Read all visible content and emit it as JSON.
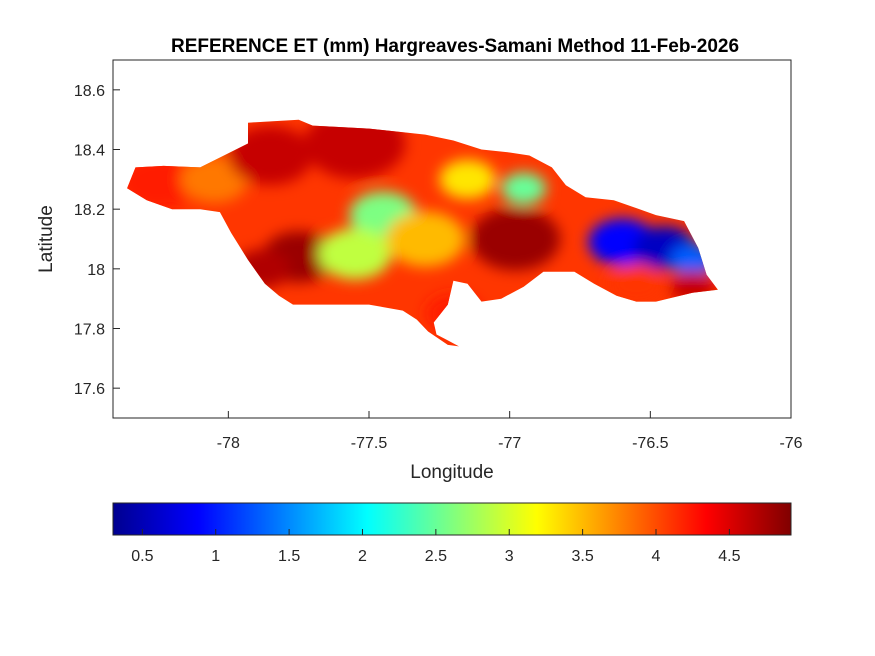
{
  "chart_data": {
    "type": "heatmap",
    "title": "REFERENCE ET (mm) Hargreaves-Samani Method  11-Feb-2026",
    "xlabel": "Longitude",
    "ylabel": "Latitude",
    "xlim": [
      -78.41,
      -76.0
    ],
    "ylim": [
      17.5,
      18.7
    ],
    "xticks": [
      -78,
      -77.5,
      -77,
      -76.5,
      -76
    ],
    "xtick_labels": [
      "-78",
      "-77.5",
      "-77",
      "-76.5",
      "-76"
    ],
    "yticks": [
      17.6,
      17.8,
      18.0,
      18.2,
      18.4,
      18.6
    ],
    "ytick_labels": [
      "17.6",
      "17.8",
      "18",
      "18.2",
      "18.4",
      "18.6"
    ],
    "colormap": "jet",
    "clim": [
      0.3,
      4.92
    ],
    "colorbar": {
      "location": "bottom",
      "ticks": [
        0.5,
        1,
        1.5,
        2,
        2.5,
        3,
        3.5,
        4,
        4.5
      ],
      "tick_labels": [
        "0.5",
        "1",
        "1.5",
        "2",
        "2.5",
        "3",
        "3.5",
        "4",
        "4.5"
      ]
    },
    "region_outline": [
      [
        -78.36,
        18.27
      ],
      [
        -78.33,
        18.34
      ],
      [
        -78.23,
        18.345
      ],
      [
        -78.1,
        18.34
      ],
      [
        -77.93,
        18.42
      ],
      [
        -77.93,
        18.49
      ],
      [
        -77.75,
        18.5
      ],
      [
        -77.7,
        18.48
      ],
      [
        -77.5,
        18.47
      ],
      [
        -77.3,
        18.45
      ],
      [
        -77.2,
        18.43
      ],
      [
        -77.1,
        18.4
      ],
      [
        -77.0,
        18.39
      ],
      [
        -76.93,
        18.38
      ],
      [
        -76.85,
        18.34
      ],
      [
        -76.8,
        18.28
      ],
      [
        -76.73,
        18.24
      ],
      [
        -76.63,
        18.23
      ],
      [
        -76.48,
        18.18
      ],
      [
        -76.38,
        18.16
      ],
      [
        -76.33,
        18.07
      ],
      [
        -76.3,
        17.98
      ],
      [
        -76.26,
        17.93
      ],
      [
        -76.35,
        17.92
      ],
      [
        -76.48,
        17.89
      ],
      [
        -76.55,
        17.89
      ],
      [
        -76.62,
        17.91
      ],
      [
        -76.7,
        17.95
      ],
      [
        -76.77,
        17.99
      ],
      [
        -76.88,
        17.99
      ],
      [
        -76.95,
        17.94
      ],
      [
        -77.03,
        17.9
      ],
      [
        -77.1,
        17.89
      ],
      [
        -77.15,
        17.95
      ],
      [
        -77.2,
        17.96
      ],
      [
        -77.22,
        17.88
      ],
      [
        -77.27,
        17.82
      ],
      [
        -77.26,
        17.78
      ],
      [
        -77.22,
        17.76
      ],
      [
        -77.18,
        17.74
      ],
      [
        -77.22,
        17.745
      ],
      [
        -77.29,
        17.79
      ],
      [
        -77.33,
        17.83
      ],
      [
        -77.38,
        17.86
      ],
      [
        -77.5,
        17.88
      ],
      [
        -77.7,
        17.88
      ],
      [
        -77.77,
        17.88
      ],
      [
        -77.82,
        17.91
      ],
      [
        -77.87,
        17.95
      ],
      [
        -77.93,
        18.03
      ],
      [
        -77.99,
        18.12
      ],
      [
        -78.03,
        18.19
      ],
      [
        -78.1,
        18.2
      ],
      [
        -78.2,
        18.2
      ],
      [
        -78.29,
        18.23
      ],
      [
        -78.36,
        18.27
      ]
    ],
    "value_regions": [
      {
        "lon": -78.25,
        "lat": 18.29,
        "value": 4.2,
        "radius_deg": 0.14
      },
      {
        "lon": -78.05,
        "lat": 18.3,
        "value": 3.8,
        "radius_deg": 0.12
      },
      {
        "lon": -77.85,
        "lat": 18.38,
        "value": 4.6,
        "radius_deg": 0.15
      },
      {
        "lon": -77.75,
        "lat": 18.04,
        "value": 4.8,
        "radius_deg": 0.13
      },
      {
        "lon": -77.88,
        "lat": 18.0,
        "value": 4.7,
        "radius_deg": 0.1
      },
      {
        "lon": -77.55,
        "lat": 18.42,
        "value": 4.6,
        "radius_deg": 0.18
      },
      {
        "lon": -77.45,
        "lat": 18.18,
        "value": 2.6,
        "radius_deg": 0.12
      },
      {
        "lon": -77.55,
        "lat": 18.05,
        "value": 2.9,
        "radius_deg": 0.13
      },
      {
        "lon": -77.3,
        "lat": 18.1,
        "value": 3.5,
        "radius_deg": 0.14
      },
      {
        "lon": -77.15,
        "lat": 18.3,
        "value": 3.3,
        "radius_deg": 0.1
      },
      {
        "lon": -76.98,
        "lat": 18.1,
        "value": 4.8,
        "radius_deg": 0.16
      },
      {
        "lon": -77.2,
        "lat": 17.85,
        "value": 4.2,
        "radius_deg": 0.1
      },
      {
        "lon": -76.95,
        "lat": 18.27,
        "value": 2.5,
        "radius_deg": 0.08
      },
      {
        "lon": -76.6,
        "lat": 18.09,
        "value": 0.9,
        "radius_deg": 0.12
      },
      {
        "lon": -76.45,
        "lat": 18.07,
        "value": 0.6,
        "radius_deg": 0.11
      },
      {
        "lon": -76.35,
        "lat": 18.03,
        "value": 1.3,
        "radius_deg": 0.08
      },
      {
        "lon": -76.55,
        "lat": 17.95,
        "value": 4.1,
        "radius_deg": 0.1
      },
      {
        "lon": -76.35,
        "lat": 17.94,
        "value": 4.6,
        "radius_deg": 0.08
      }
    ]
  }
}
